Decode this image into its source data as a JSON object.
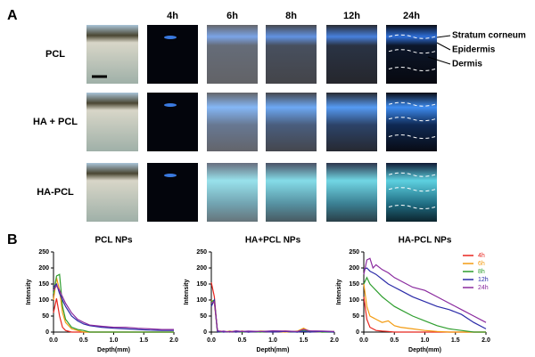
{
  "panel_a": {
    "label": "A",
    "columns": [
      "4h",
      "6h",
      "8h",
      "12h",
      "24h"
    ],
    "rows": [
      "PCL",
      "HA + PCL",
      "HA-PCL"
    ],
    "annotations": [
      "Stratum corneum",
      "Epidermis",
      "Dermis"
    ]
  },
  "panel_b": {
    "label": "B"
  },
  "chart_data": [
    {
      "type": "line",
      "title": "PCL NPs",
      "x_label": "Depth(mm)",
      "y_label": "Intensity",
      "x": [
        0,
        0.05,
        0.1,
        0.15,
        0.2,
        0.3,
        0.4,
        0.5,
        0.6,
        0.8,
        1.0,
        1.2,
        1.4,
        1.6,
        1.8,
        2.0
      ],
      "xlim": [
        0,
        2
      ],
      "ylim": [
        0,
        250
      ],
      "xticks": [
        {
          "value": 0,
          "label": "0.0"
        },
        0.5,
        {
          "value": 1,
          "label": "1.0"
        },
        1.5,
        {
          "value": 2,
          "label": "2.0"
        }
      ],
      "yticks": [
        0,
        50,
        100,
        150,
        200,
        250
      ],
      "legend": false,
      "series": [
        {
          "color": "#e8261f",
          "values": [
            60,
            105,
            50,
            15,
            5,
            0,
            0,
            0,
            0,
            0,
            0,
            0,
            0,
            0,
            0,
            0
          ]
        },
        {
          "color": "#f39c12",
          "values": [
            100,
            170,
            130,
            60,
            30,
            10,
            5,
            0,
            0,
            0,
            0,
            0,
            0,
            0,
            0,
            0
          ]
        },
        {
          "color": "#2e9e2e",
          "values": [
            120,
            175,
            180,
            80,
            40,
            15,
            8,
            5,
            0,
            0,
            0,
            0,
            0,
            0,
            0,
            0
          ]
        },
        {
          "color": "#2b2ba8",
          "values": [
            140,
            150,
            120,
            100,
            80,
            50,
            35,
            25,
            20,
            15,
            12,
            10,
            8,
            6,
            5,
            5
          ]
        },
        {
          "color": "#8a2a9e",
          "values": [
            130,
            145,
            130,
            110,
            90,
            60,
            40,
            30,
            22,
            18,
            15,
            15,
            12,
            10,
            8,
            8
          ]
        }
      ]
    },
    {
      "type": "line",
      "title": "HA+PCL NPs",
      "x_label": "Depth(mm)",
      "y_label": "Intensity",
      "x": [
        0,
        0.05,
        0.1,
        0.15,
        0.2,
        0.3,
        0.4,
        0.5,
        0.6,
        0.8,
        1.0,
        1.2,
        1.4,
        1.5,
        1.6,
        1.8,
        2.0
      ],
      "xlim": [
        0,
        2
      ],
      "ylim": [
        0,
        250
      ],
      "xticks": [
        {
          "value": 0,
          "label": "0.0"
        },
        0.5,
        {
          "value": 1,
          "label": "1.0"
        },
        1.5,
        {
          "value": 2,
          "label": "2.0"
        }
      ],
      "yticks": [
        0,
        50,
        100,
        150,
        200,
        250
      ],
      "legend": false,
      "series": [
        {
          "color": "#e8261f",
          "values": [
            155,
            110,
            0,
            3,
            0,
            2,
            0,
            3,
            0,
            2,
            0,
            3,
            2,
            10,
            0,
            2,
            0
          ]
        },
        {
          "color": "#f39c12",
          "values": [
            100,
            90,
            0,
            2,
            0,
            3,
            0,
            2,
            0,
            3,
            2,
            0,
            3,
            12,
            2,
            0,
            2
          ]
        },
        {
          "color": "#2e9e2e",
          "values": [
            95,
            100,
            0,
            0,
            2,
            0,
            3,
            0,
            2,
            0,
            3,
            2,
            0,
            5,
            3,
            0,
            0
          ]
        },
        {
          "color": "#2b2ba8",
          "values": [
            80,
            100,
            0,
            2,
            0,
            2,
            0,
            2,
            0,
            2,
            0,
            2,
            0,
            2,
            0,
            2,
            0
          ]
        },
        {
          "color": "#8a2a9e",
          "values": [
            90,
            95,
            5,
            2,
            3,
            0,
            4,
            2,
            3,
            2,
            4,
            3,
            2,
            8,
            4,
            3,
            2
          ]
        }
      ]
    },
    {
      "type": "line",
      "title": "HA-PCL NPs",
      "x_label": "Depth(mm)",
      "y_label": "Intensity",
      "x": [
        0,
        0.05,
        0.1,
        0.15,
        0.2,
        0.3,
        0.4,
        0.5,
        0.6,
        0.8,
        1.0,
        1.2,
        1.4,
        1.6,
        1.8,
        2.0
      ],
      "xlim": [
        0,
        2
      ],
      "ylim": [
        0,
        250
      ],
      "xticks": [
        {
          "value": 0,
          "label": "0.0"
        },
        0.5,
        {
          "value": 1,
          "label": "1.0"
        },
        1.5,
        {
          "value": 2,
          "label": "2.0"
        }
      ],
      "yticks": [
        0,
        50,
        100,
        150,
        200,
        250
      ],
      "legend": true,
      "series": [
        {
          "name": "4h",
          "color": "#e8261f",
          "values": [
            110,
            40,
            15,
            10,
            5,
            3,
            2,
            0,
            0,
            0,
            0,
            0,
            0,
            0,
            0,
            0
          ]
        },
        {
          "name": "6h",
          "color": "#f39c12",
          "values": [
            150,
            80,
            50,
            45,
            40,
            30,
            35,
            20,
            15,
            10,
            5,
            2,
            0,
            0,
            0,
            0
          ]
        },
        {
          "name": "8h",
          "color": "#2e9e2e",
          "values": [
            150,
            170,
            150,
            140,
            130,
            110,
            95,
            80,
            70,
            50,
            35,
            20,
            10,
            5,
            0,
            0
          ]
        },
        {
          "name": "12h",
          "color": "#2b2ba8",
          "values": [
            195,
            200,
            190,
            185,
            180,
            165,
            150,
            140,
            130,
            110,
            95,
            80,
            70,
            55,
            30,
            10
          ]
        },
        {
          "name": "24h",
          "color": "#8a2a9e",
          "values": [
            180,
            225,
            230,
            200,
            210,
            195,
            185,
            170,
            160,
            140,
            130,
            110,
            90,
            70,
            50,
            30
          ]
        }
      ]
    }
  ]
}
